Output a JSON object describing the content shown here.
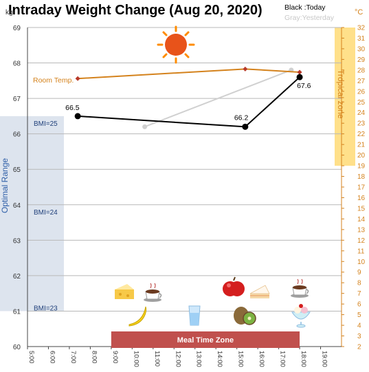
{
  "chart_data": {
    "type": "line",
    "title": "Intraday Weight Change (Aug 20, 2020)",
    "y_unit": "kg",
    "y2_unit": "°C",
    "ylim": [
      60,
      69
    ],
    "y2lim": [
      2,
      32
    ],
    "xlim": [
      5,
      20
    ],
    "x_ticks": [
      "5:00",
      "6:00",
      "7:00",
      "8:00",
      "9:00",
      "10:00",
      "11:00",
      "12:00",
      "13:00",
      "14:00",
      "15:00",
      "16:00",
      "17:00",
      "18:00",
      "19:00"
    ],
    "y_ticks": [
      60,
      61,
      62,
      63,
      64,
      65,
      66,
      67,
      68,
      69
    ],
    "y2_ticks": [
      2,
      3,
      4,
      5,
      6,
      7,
      8,
      9,
      10,
      11,
      12,
      13,
      14,
      15,
      16,
      17,
      18,
      19,
      20,
      21,
      22,
      23,
      24,
      25,
      26,
      27,
      28,
      29,
      30,
      31,
      32
    ],
    "legend": {
      "black": "Black :Today",
      "gray": "Gray:Yesterday"
    },
    "series": [
      {
        "name": "Today",
        "color": "#000000",
        "x": [
          7.4,
          15.4,
          18.0
        ],
        "y": [
          66.5,
          66.2,
          67.6
        ],
        "labels": [
          "66.5",
          "66.2",
          "67.6"
        ]
      },
      {
        "name": "Yesterday",
        "color": "#d0d0d0",
        "x": [
          10.6,
          17.6
        ],
        "y": [
          66.2,
          67.8
        ]
      },
      {
        "name": "Room Temp.",
        "color": "#d4821c",
        "axis": "right",
        "x": [
          7.4,
          15.4,
          18.0
        ],
        "y": [
          27.2,
          28.1,
          27.8
        ]
      }
    ],
    "bands": {
      "optimal": {
        "label": "Optimal Range",
        "ymin": 61,
        "ymax": 66.5,
        "color": "#dde4ee"
      },
      "tropical": {
        "label": "Tropical zone",
        "y2min": 19,
        "y2max": 32,
        "color": "#ffe08a"
      },
      "meal": {
        "label": "Meal Time Zone",
        "xmin": 9,
        "xmax": 18,
        "color": "#c0504d"
      }
    },
    "bmi_labels": [
      {
        "text": "BMI=25",
        "y": 66.3
      },
      {
        "text": "BMI=24",
        "y": 63.8
      },
      {
        "text": "BMI=23",
        "y": 61.1
      }
    ],
    "room_temp_label": "Room Temp.",
    "icons": [
      "sun-icon",
      "cheesecake-icon",
      "coffee-icon",
      "apple-icon",
      "cake-slice-icon",
      "coffee-icon",
      "banana-icon",
      "water-glass-icon",
      "kiwi-icon",
      "ice-cream-icon"
    ],
    "grid": "horizontal"
  }
}
